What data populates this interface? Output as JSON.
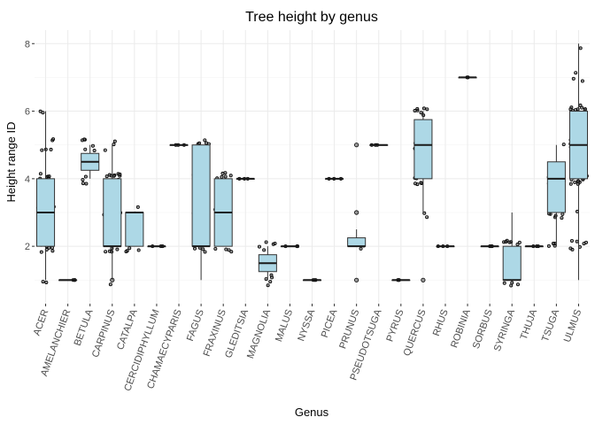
{
  "chart_data": {
    "type": "boxplot",
    "title": "Tree height by genus",
    "xlabel": "Genus",
    "ylabel": "Height range ID",
    "ylim": [
      0.3,
      8.4
    ],
    "yticks": [
      2,
      4,
      6,
      8
    ],
    "grid": true,
    "box_color": "#add8e6",
    "categories": [
      "ACER",
      "AMELANCHIER",
      "BETULA",
      "CARPINUS",
      "CATALPA",
      "CERCIDIPHYLLUM",
      "CHAMAECYPARIS",
      "FAGUS",
      "FRAXINUS",
      "GLEDITSIA",
      "MAGNOLIA",
      "MALUS",
      "NYSSA",
      "PICEA",
      "PRUNUS",
      "PSEUDOTSUGA",
      "PYRUS",
      "QUERCUS",
      "RHUS",
      "ROBINIA",
      "SORBUS",
      "SYRINGA",
      "THUJA",
      "TSUGA",
      "ULMUS"
    ],
    "boxes": [
      {
        "q1": 2,
        "median": 3,
        "q3": 4,
        "min": 1,
        "max": 6
      },
      {
        "q1": 1,
        "median": 1,
        "q3": 1,
        "min": 1,
        "max": 1
      },
      {
        "q1": 4.25,
        "median": 4.5,
        "q3": 4.75,
        "min": 4,
        "max": 5
      },
      {
        "q1": 2,
        "median": 2,
        "q3": 4,
        "min": 1,
        "max": 5
      },
      {
        "q1": 2,
        "median": 3,
        "q3": 3,
        "min": 2,
        "max": 3
      },
      {
        "q1": 2,
        "median": 2,
        "q3": 2,
        "min": 2,
        "max": 2
      },
      {
        "q1": 5,
        "median": 5,
        "q3": 5,
        "min": 5,
        "max": 5
      },
      {
        "q1": 2,
        "median": 2,
        "q3": 5,
        "min": 1,
        "max": 5
      },
      {
        "q1": 2,
        "median": 3,
        "q3": 4,
        "min": 2,
        "max": 4
      },
      {
        "q1": 4,
        "median": 4,
        "q3": 4,
        "min": 4,
        "max": 4
      },
      {
        "q1": 1.25,
        "median": 1.5,
        "q3": 1.75,
        "min": 1,
        "max": 2
      },
      {
        "q1": 2,
        "median": 2,
        "q3": 2,
        "min": 2,
        "max": 2
      },
      {
        "q1": 1,
        "median": 1,
        "q3": 1,
        "min": 1,
        "max": 1
      },
      {
        "q1": 4,
        "median": 4,
        "q3": 4,
        "min": 4,
        "max": 4
      },
      {
        "q1": 2,
        "median": 2,
        "q3": 2.25,
        "min": 2,
        "max": 2.5
      },
      {
        "q1": 5,
        "median": 5,
        "q3": 5,
        "min": 5,
        "max": 5
      },
      {
        "q1": 1,
        "median": 1,
        "q3": 1,
        "min": 1,
        "max": 1
      },
      {
        "q1": 4,
        "median": 5,
        "q3": 5.75,
        "min": 3,
        "max": 6
      },
      {
        "q1": 2,
        "median": 2,
        "q3": 2,
        "min": 2,
        "max": 2
      },
      {
        "q1": 7,
        "median": 7,
        "q3": 7,
        "min": 7,
        "max": 7
      },
      {
        "q1": 2,
        "median": 2,
        "q3": 2,
        "min": 2,
        "max": 2
      },
      {
        "q1": 1,
        "median": 1,
        "q3": 2,
        "min": 1,
        "max": 3
      },
      {
        "q1": 2,
        "median": 2,
        "q3": 2,
        "min": 2,
        "max": 2
      },
      {
        "q1": 3,
        "median": 4,
        "q3": 4.5,
        "min": 2,
        "max": 5
      },
      {
        "q1": 4,
        "median": 5,
        "q3": 6,
        "min": 1,
        "max": 8
      }
    ],
    "outliers": [
      {
        "category": "CARPINUS",
        "values": [
          1
        ]
      },
      {
        "category": "PRUNUS",
        "values": [
          1,
          3,
          5
        ]
      },
      {
        "category": "QUERCUS",
        "values": [
          1
        ]
      },
      {
        "category": "ULMUS",
        "values": []
      }
    ]
  }
}
